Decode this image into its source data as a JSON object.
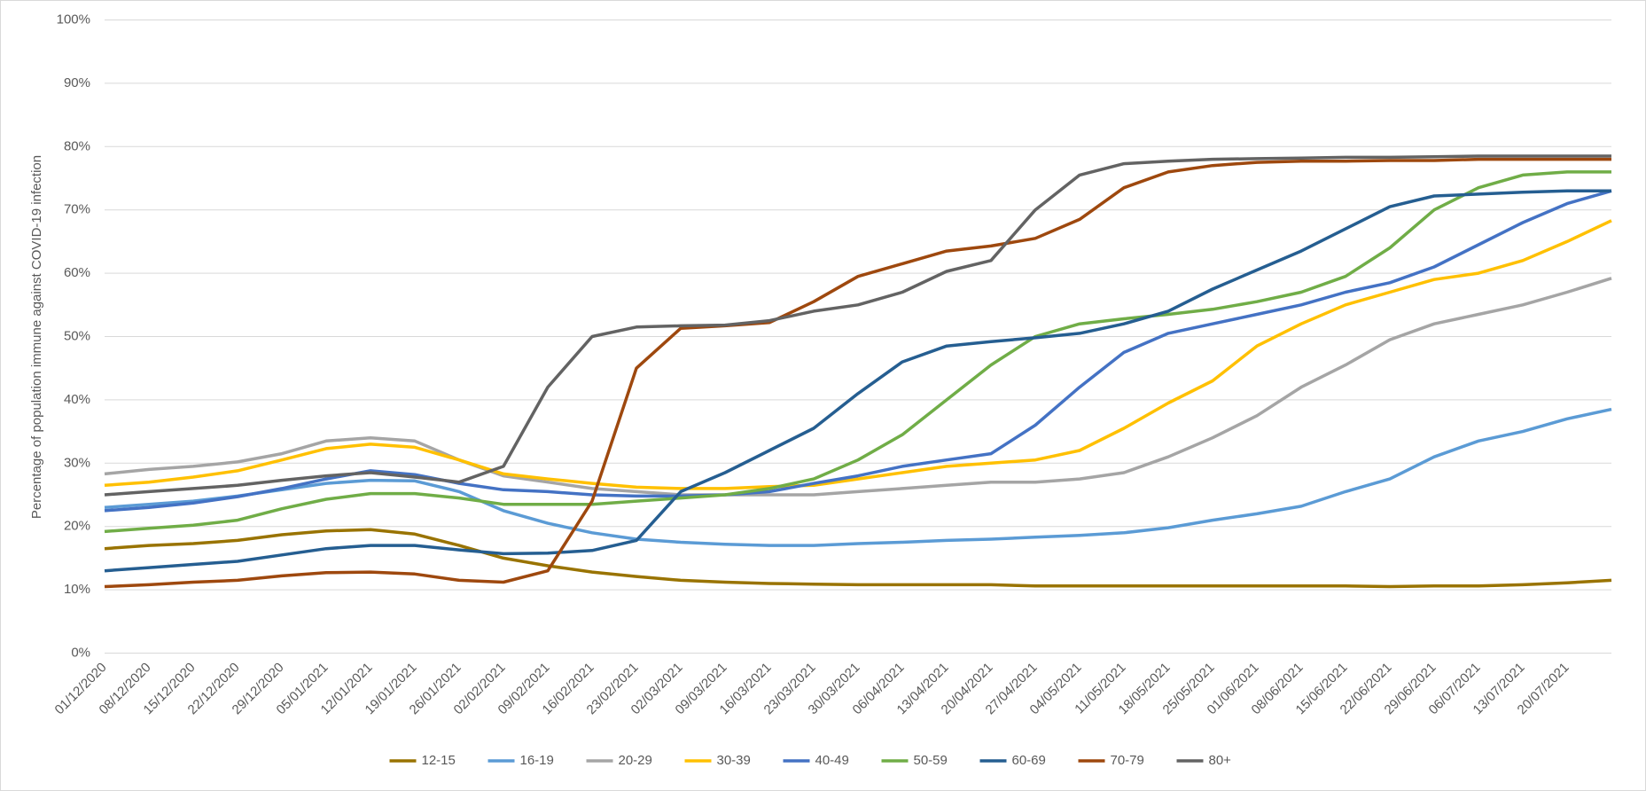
{
  "chart_data": {
    "type": "line",
    "y_label": "Percentage of population immune against COVID-19 infection",
    "categories": [
      "01/12/2020",
      "08/12/2020",
      "15/12/2020",
      "22/12/2020",
      "29/12/2020",
      "05/01/2021",
      "12/01/2021",
      "19/01/2021",
      "26/01/2021",
      "02/02/2021",
      "09/02/2021",
      "16/02/2021",
      "23/02/2021",
      "02/03/2021",
      "09/03/2021",
      "16/03/2021",
      "23/03/2021",
      "30/03/2021",
      "06/04/2021",
      "13/04/2021",
      "20/04/2021",
      "27/04/2021",
      "04/05/2021",
      "11/05/2021",
      "18/05/2021",
      "25/05/2021",
      "01/06/2021",
      "08/06/2021",
      "15/06/2021",
      "22/06/2021",
      "29/06/2021",
      "06/07/2021",
      "13/07/2021",
      "20/07/2021",
      null
    ],
    "series": [
      {
        "name": "12-15",
        "color": "#997300",
        "values": [
          16.5,
          17,
          17.3,
          17.8,
          18.7,
          19.3,
          19.5,
          18.8,
          17,
          15,
          13.8,
          12.8,
          12.1,
          11.5,
          11.2,
          11,
          10.9,
          10.8,
          10.8,
          10.8,
          10.8,
          10.6,
          10.6,
          10.6,
          10.6,
          10.6,
          10.6,
          10.6,
          10.6,
          10.5,
          10.6,
          10.6,
          10.8,
          11.1,
          11.5
        ]
      },
      {
        "name": "16-19",
        "color": "#5b9bd5",
        "values": [
          23,
          23.5,
          24,
          24.8,
          25.8,
          26.8,
          27.3,
          27.2,
          25.5,
          22.5,
          20.5,
          19,
          18,
          17.5,
          17.2,
          17,
          17,
          17.3,
          17.5,
          17.8,
          18,
          18.3,
          18.6,
          19,
          19.8,
          21,
          22,
          23.2,
          25.5,
          27.5,
          31,
          33.5,
          35,
          37,
          38.5
        ]
      },
      {
        "name": "20-29",
        "color": "#a5a5a5",
        "values": [
          28.3,
          29,
          29.5,
          30.2,
          31.5,
          33.5,
          34,
          33.5,
          30.5,
          28,
          27,
          26,
          25.5,
          25,
          25,
          25,
          25,
          25.5,
          26,
          26.5,
          27,
          27,
          27.5,
          28.5,
          31,
          34,
          37.5,
          42,
          45.5,
          49.5,
          52,
          53.5,
          55,
          57,
          59.2
        ]
      },
      {
        "name": "30-39",
        "color": "#ffc000",
        "values": [
          26.5,
          27,
          27.8,
          28.8,
          30.5,
          32.3,
          33,
          32.5,
          30.5,
          28.3,
          27.5,
          26.8,
          26.2,
          26,
          26,
          26.3,
          26.5,
          27.5,
          28.5,
          29.5,
          30,
          30.5,
          32,
          35.5,
          39.5,
          43,
          48.5,
          52,
          55,
          57,
          59,
          60,
          62,
          65,
          68.3
        ]
      },
      {
        "name": "40-49",
        "color": "#4472c4",
        "values": [
          22.5,
          23,
          23.7,
          24.7,
          26,
          27.5,
          28.8,
          28.2,
          26.8,
          25.8,
          25.5,
          25,
          24.8,
          24.8,
          25,
          25.5,
          26.8,
          28,
          29.5,
          30.5,
          31.5,
          36,
          42,
          47.5,
          50.5,
          52,
          53.5,
          55,
          57,
          58.5,
          61,
          64.5,
          68,
          71,
          73
        ]
      },
      {
        "name": "50-59",
        "color": "#70ad47",
        "values": [
          19.2,
          19.7,
          20.2,
          21,
          22.8,
          24.3,
          25.2,
          25.2,
          24.5,
          23.5,
          23.5,
          23.5,
          24,
          24.5,
          25,
          26,
          27.5,
          30.5,
          34.5,
          40,
          45.5,
          50,
          52,
          52.8,
          53.5,
          54.3,
          55.5,
          57,
          59.5,
          64,
          70,
          73.5,
          75.5,
          76,
          76
        ]
      },
      {
        "name": "60-69",
        "color": "#255e91",
        "values": [
          13,
          13.5,
          14,
          14.5,
          15.5,
          16.5,
          17,
          17,
          16.3,
          15.7,
          15.8,
          16.2,
          17.8,
          25.5,
          28.5,
          32,
          35.5,
          41,
          46,
          48.5,
          49.2,
          49.8,
          50.5,
          52,
          54,
          57.5,
          60.5,
          63.5,
          67,
          70.5,
          72.2,
          72.5,
          72.8,
          73,
          73
        ]
      },
      {
        "name": "70-79",
        "color": "#9e480e",
        "values": [
          10.5,
          10.8,
          11.2,
          11.5,
          12.2,
          12.7,
          12.8,
          12.5,
          11.5,
          11.2,
          13,
          24,
          45,
          51.3,
          51.7,
          52.2,
          55.5,
          59.5,
          61.5,
          63.5,
          64.3,
          65.5,
          68.5,
          73.5,
          76,
          77,
          77.5,
          77.7,
          77.7,
          77.8,
          77.8,
          78,
          78,
          78,
          78
        ]
      },
      {
        "name": "80+",
        "color": "#636363",
        "values": [
          25,
          25.5,
          26,
          26.5,
          27.3,
          28,
          28.5,
          27.8,
          27,
          29.5,
          42,
          50,
          51.5,
          51.7,
          51.8,
          52.5,
          54,
          55,
          57,
          60.3,
          62,
          70,
          75.5,
          77.3,
          77.7,
          78,
          78.1,
          78.2,
          78.3,
          78.3,
          78.4,
          78.5,
          78.5,
          78.5,
          78.5
        ]
      }
    ],
    "ylim": [
      0,
      100
    ],
    "yticks": [
      {
        "value": 0,
        "label": "0%"
      },
      {
        "value": 10,
        "label": "10%"
      },
      {
        "value": 20,
        "label": "20%"
      },
      {
        "value": 30,
        "label": "30%"
      },
      {
        "value": 40,
        "label": "40%"
      },
      {
        "value": 50,
        "label": "50%"
      },
      {
        "value": 60,
        "label": "60%"
      },
      {
        "value": 70,
        "label": "70%"
      },
      {
        "value": 80,
        "label": "80%"
      },
      {
        "value": 90,
        "label": "90%"
      },
      {
        "value": 100,
        "label": "100%"
      }
    ],
    "grid": true,
    "legend": "bottom"
  }
}
